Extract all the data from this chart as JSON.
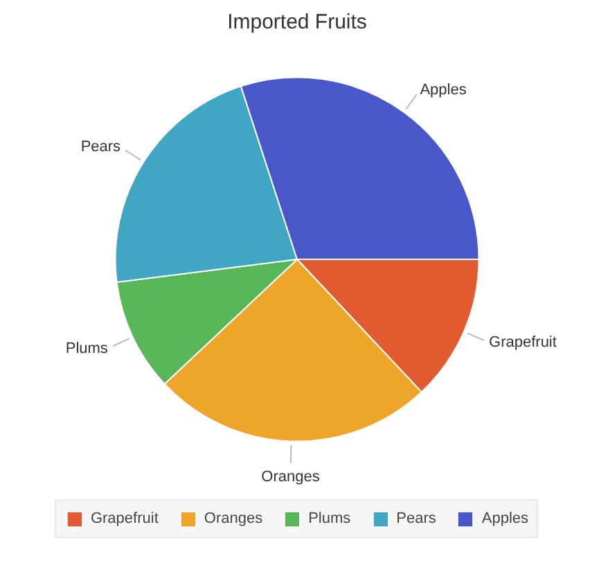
{
  "chart_data": {
    "type": "pie",
    "title": "Imported Fruits",
    "categories": [
      "Grapefruit",
      "Oranges",
      "Plums",
      "Pears",
      "Apples"
    ],
    "values": [
      13,
      25,
      10,
      22,
      30
    ],
    "colors": [
      "#e25a30",
      "#eda52a",
      "#57b757",
      "#40a6c4",
      "#4a57c8"
    ],
    "legend": "bottom"
  }
}
